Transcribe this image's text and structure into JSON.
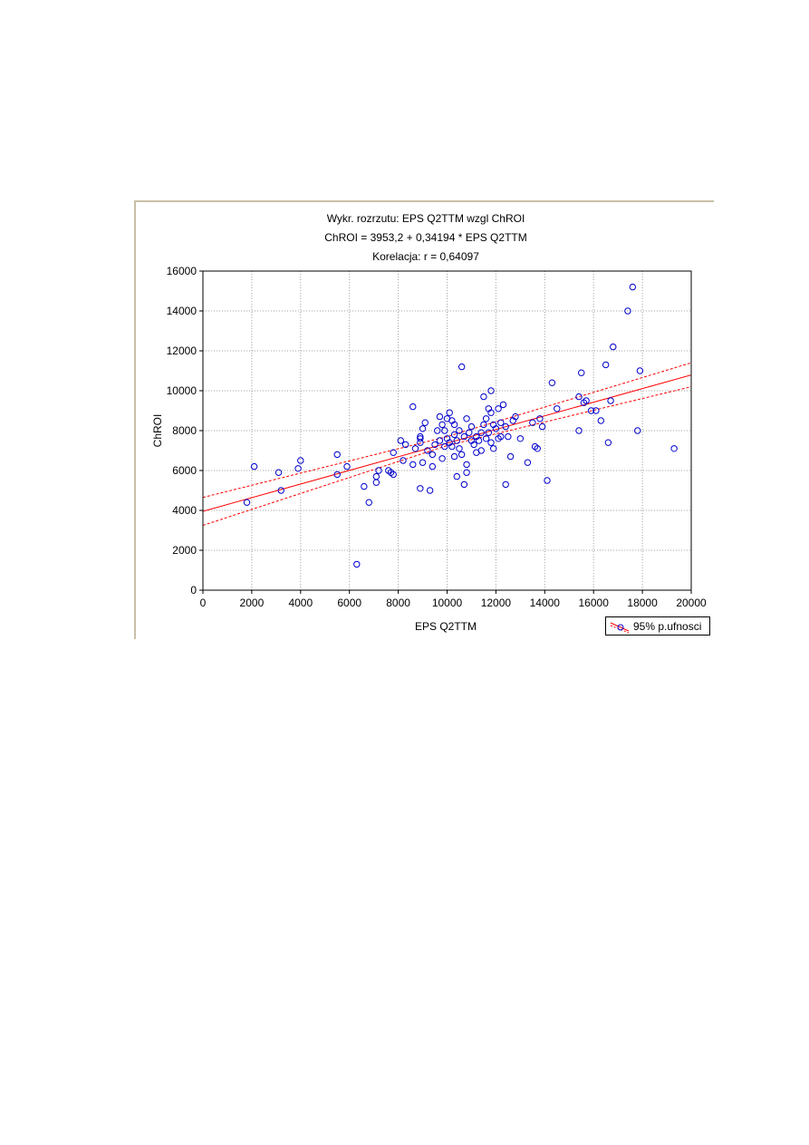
{
  "chart_data": {
    "type": "scatter",
    "title": "Wykr. rozrzutu: EPS Q2TTM wzgl ChROI",
    "equation": "ChROI = 3953,2 + 0,34194 * EPS Q2TTM",
    "correlation": "Korelacja: r =   0,64097",
    "xlabel": "EPS Q2TTM",
    "ylabel": "ChROI",
    "xlim": [
      0,
      20000
    ],
    "ylim": [
      0,
      16000
    ],
    "xticks": [
      0,
      2000,
      4000,
      6000,
      8000,
      10000,
      12000,
      14000,
      16000,
      18000,
      20000
    ],
    "yticks": [
      0,
      2000,
      4000,
      6000,
      8000,
      10000,
      12000,
      14000,
      16000
    ],
    "grid": true,
    "legend": {
      "position": "bottom-right",
      "label": "95% p.ufnosci"
    },
    "regression": {
      "intercept": 3953.2,
      "slope": 0.34194
    },
    "confidence_band": {
      "x": [
        0,
        10000,
        20000
      ],
      "upper": [
        4650,
        7700,
        11400
      ],
      "lower": [
        3250,
        7250,
        10200
      ]
    },
    "colors": {
      "points": "#0000cc",
      "regression": "#ff0000",
      "grid": "#a0a0a0",
      "frame": "#c9c0a8"
    },
    "points": [
      [
        1800,
        4400
      ],
      [
        2100,
        6200
      ],
      [
        3100,
        5900
      ],
      [
        3200,
        5000
      ],
      [
        3900,
        6100
      ],
      [
        4000,
        6500
      ],
      [
        5500,
        5800
      ],
      [
        5500,
        6800
      ],
      [
        5900,
        6200
      ],
      [
        6300,
        1300
      ],
      [
        6600,
        5200
      ],
      [
        6800,
        4400
      ],
      [
        7100,
        5700
      ],
      [
        7100,
        5400
      ],
      [
        7200,
        6000
      ],
      [
        7600,
        6000
      ],
      [
        7700,
        5900
      ],
      [
        7800,
        6900
      ],
      [
        7800,
        5800
      ],
      [
        8100,
        7500
      ],
      [
        8200,
        6500
      ],
      [
        8300,
        7300
      ],
      [
        8600,
        9200
      ],
      [
        8600,
        6300
      ],
      [
        8700,
        7100
      ],
      [
        8900,
        7400
      ],
      [
        8900,
        7600
      ],
      [
        8900,
        7700
      ],
      [
        8900,
        5100
      ],
      [
        9000,
        8100
      ],
      [
        9000,
        6400
      ],
      [
        9100,
        8400
      ],
      [
        9200,
        7000
      ],
      [
        9300,
        5000
      ],
      [
        9400,
        6200
      ],
      [
        9400,
        6800
      ],
      [
        9500,
        7300
      ],
      [
        9600,
        8000
      ],
      [
        9700,
        8700
      ],
      [
        9700,
        7500
      ],
      [
        9800,
        8300
      ],
      [
        9800,
        6600
      ],
      [
        9900,
        7200
      ],
      [
        9900,
        8000
      ],
      [
        10000,
        8600
      ],
      [
        10000,
        7600
      ],
      [
        10100,
        8900
      ],
      [
        10100,
        7400
      ],
      [
        10200,
        8500
      ],
      [
        10200,
        7200
      ],
      [
        10300,
        8300
      ],
      [
        10300,
        7800
      ],
      [
        10300,
        6700
      ],
      [
        10400,
        5700
      ],
      [
        10400,
        7500
      ],
      [
        10500,
        8000
      ],
      [
        10500,
        7100
      ],
      [
        10600,
        11200
      ],
      [
        10600,
        6800
      ],
      [
        10700,
        5300
      ],
      [
        10700,
        7700
      ],
      [
        10800,
        8600
      ],
      [
        10800,
        6300
      ],
      [
        10800,
        5900
      ],
      [
        10900,
        7900
      ],
      [
        11000,
        7500
      ],
      [
        11000,
        8200
      ],
      [
        11100,
        7300
      ],
      [
        11200,
        7700
      ],
      [
        11200,
        6900
      ],
      [
        11300,
        7500
      ],
      [
        11400,
        7900
      ],
      [
        11400,
        7000
      ],
      [
        11500,
        9700
      ],
      [
        11500,
        8300
      ],
      [
        11600,
        8600
      ],
      [
        11600,
        7600
      ],
      [
        11700,
        9100
      ],
      [
        11700,
        7900
      ],
      [
        11800,
        10000
      ],
      [
        11800,
        8900
      ],
      [
        11800,
        7400
      ],
      [
        11900,
        8300
      ],
      [
        11900,
        7100
      ],
      [
        12000,
        8100
      ],
      [
        12100,
        9100
      ],
      [
        12100,
        7600
      ],
      [
        12200,
        8400
      ],
      [
        12200,
        7700
      ],
      [
        12300,
        9300
      ],
      [
        12400,
        8200
      ],
      [
        12400,
        5300
      ],
      [
        12500,
        7700
      ],
      [
        12600,
        6700
      ],
      [
        12700,
        8500
      ],
      [
        12800,
        8700
      ],
      [
        13000,
        7600
      ],
      [
        13300,
        6400
      ],
      [
        13500,
        8400
      ],
      [
        13600,
        7200
      ],
      [
        13700,
        7100
      ],
      [
        13800,
        8600
      ],
      [
        13900,
        8200
      ],
      [
        14100,
        5500
      ],
      [
        14300,
        10400
      ],
      [
        14500,
        9100
      ],
      [
        15400,
        8000
      ],
      [
        15400,
        9700
      ],
      [
        15500,
        10900
      ],
      [
        15600,
        9400
      ],
      [
        15700,
        9500
      ],
      [
        15900,
        9000
      ],
      [
        16100,
        9000
      ],
      [
        16300,
        8500
      ],
      [
        16500,
        11300
      ],
      [
        16600,
        7400
      ],
      [
        16700,
        9500
      ],
      [
        16800,
        12200
      ],
      [
        17400,
        14000
      ],
      [
        17600,
        15200
      ],
      [
        17800,
        8000
      ],
      [
        17900,
        11000
      ],
      [
        19300,
        7100
      ]
    ]
  }
}
